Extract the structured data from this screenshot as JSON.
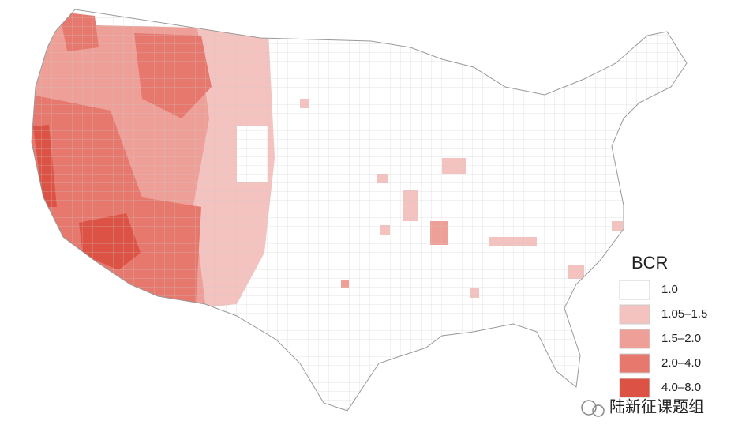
{
  "legend": {
    "title": "BCR",
    "items": [
      {
        "label": "1.0",
        "color": "#ffffff"
      },
      {
        "label": "1.05–1.5",
        "color": "#f4c3bf"
      },
      {
        "label": "1.5–2.0",
        "color": "#ee9f97"
      },
      {
        "label": "2.0–4.0",
        "color": "#e6786d"
      },
      {
        "label": "4.0–8.0",
        "color": "#dc5244"
      }
    ]
  },
  "watermark": "陆新征课题组"
}
